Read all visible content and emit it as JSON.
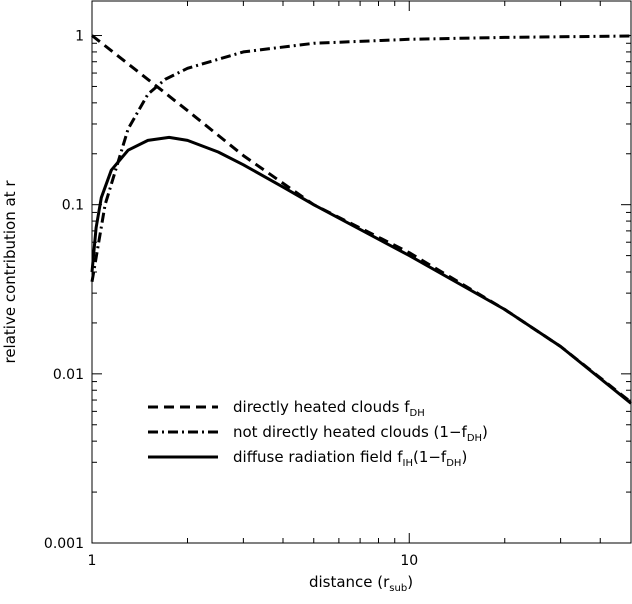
{
  "chart_data": {
    "type": "line",
    "title": "",
    "xlabel": {
      "main": "distance",
      "open": " (r",
      "sub": "sub",
      "close": ")"
    },
    "ylabel": "relative contribution at r",
    "x_scale": "log",
    "y_scale": "log",
    "xlim": [
      1,
      50
    ],
    "ylim": [
      0.001,
      1.6
    ],
    "x_ticks": [
      {
        "value": 1,
        "label": "1"
      },
      {
        "value": 10,
        "label": "10"
      }
    ],
    "y_ticks": [
      {
        "value": 1,
        "label": "1"
      },
      {
        "value": 0.1,
        "label": "0.1"
      },
      {
        "value": 0.01,
        "label": "0.01"
      },
      {
        "value": 0.001,
        "label": "0.001"
      }
    ],
    "legend_position": "bottom-left",
    "series": [
      {
        "name": "directly heated clouds f",
        "name_sub": "DH",
        "style": "dashed",
        "x": [
          1,
          1.5,
          2,
          3,
          5,
          10,
          20,
          30,
          50
        ],
        "y": [
          1.0,
          0.55,
          0.36,
          0.195,
          0.1,
          0.052,
          0.024,
          0.0145,
          0.0068
        ]
      },
      {
        "name": "not directly heated clouds (1−f",
        "name_sub": "DH",
        "name_post": ")",
        "style": "dashdot",
        "x": [
          1,
          1.1,
          1.3,
          1.5,
          1.7,
          2,
          3,
          5,
          10,
          20,
          50
        ],
        "y": [
          0.035,
          0.1,
          0.28,
          0.45,
          0.55,
          0.64,
          0.8,
          0.9,
          0.95,
          0.975,
          0.993
        ]
      },
      {
        "name": "diffuse radiation field f",
        "name_sub": "IH",
        "name_post": "(1−f",
        "name_sub2": "DH",
        "name_post2": ")",
        "style": "solid",
        "x": [
          1,
          1.03,
          1.07,
          1.15,
          1.3,
          1.5,
          1.75,
          2,
          2.5,
          3,
          4,
          5,
          10,
          20,
          30,
          50
        ],
        "y": [
          0.04,
          0.073,
          0.11,
          0.16,
          0.21,
          0.24,
          0.25,
          0.24,
          0.205,
          0.172,
          0.127,
          0.1,
          0.05,
          0.024,
          0.0145,
          0.0067
        ]
      }
    ]
  }
}
